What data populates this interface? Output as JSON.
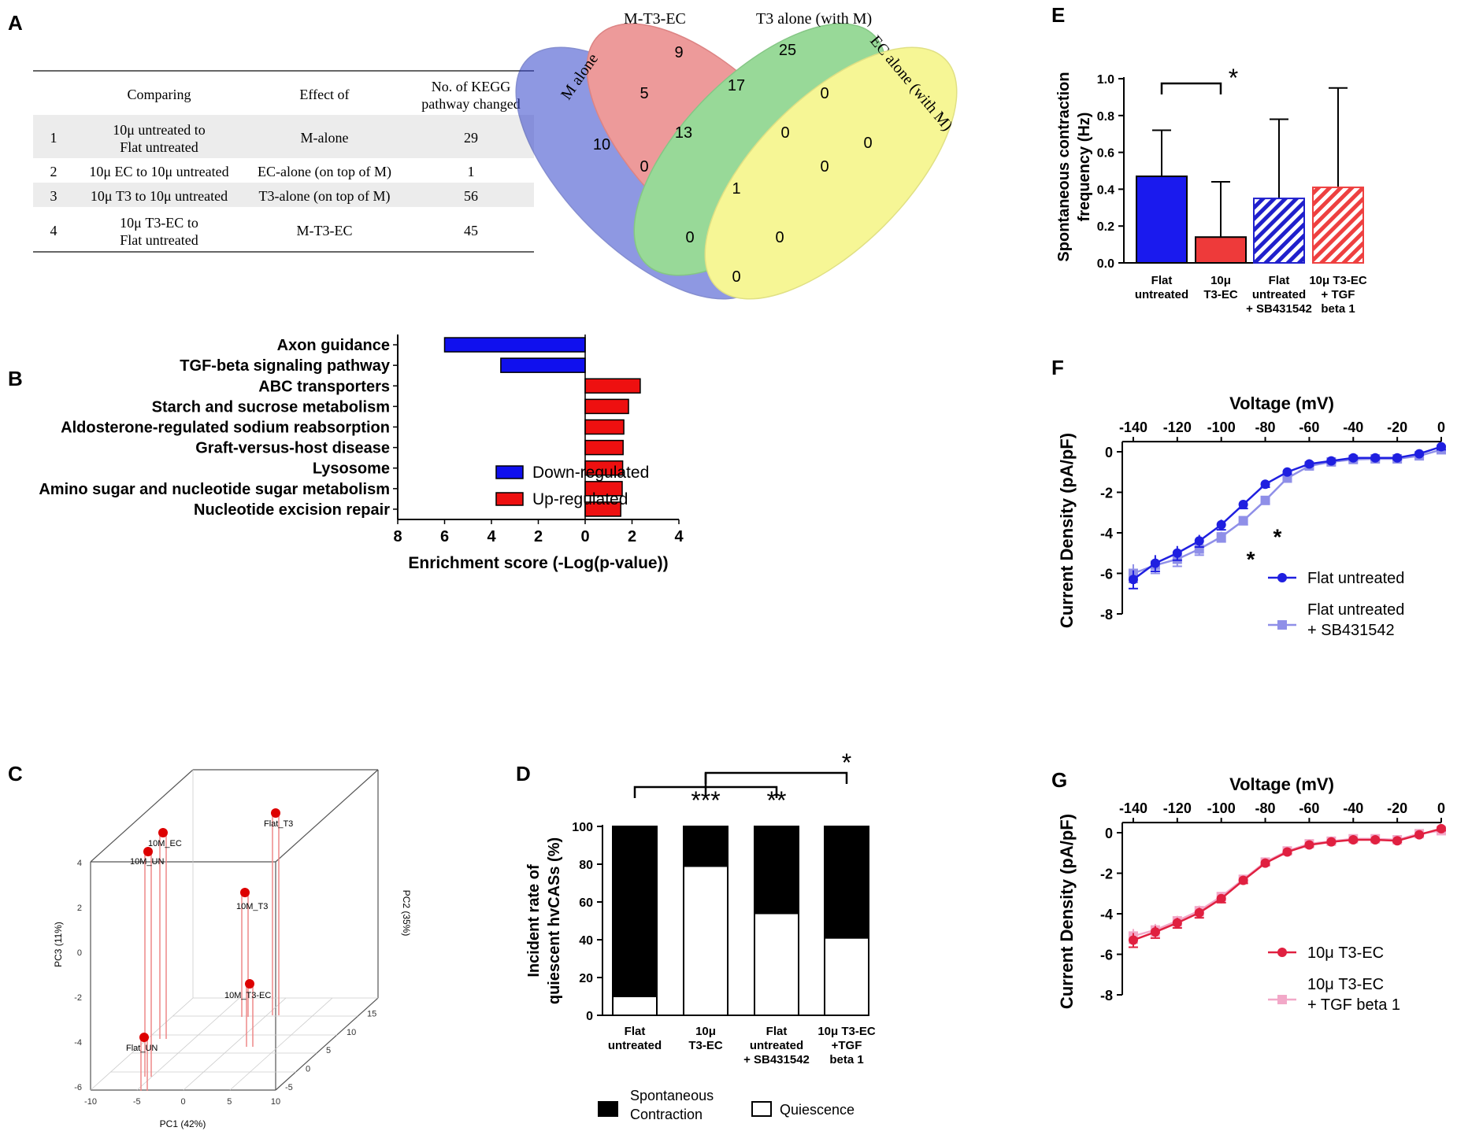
{
  "panel_labels": {
    "a": "A",
    "b": "B",
    "c": "C",
    "d": "D",
    "e": "E",
    "f": "F",
    "g": "G"
  },
  "table": {
    "headers": [
      "Comparing",
      "Effect of",
      "No. of KEGG pathway changed"
    ],
    "rows": [
      {
        "n": "1",
        "comparing": "10μ untreated to Flat untreated",
        "effect": "M-alone",
        "count": "29"
      },
      {
        "n": "2",
        "comparing": "10μ EC to 10μ untreated",
        "effect": "EC-alone (on top of M)",
        "count": "1"
      },
      {
        "n": "3",
        "comparing": "10μ T3 to 10μ untreated",
        "effect": "T3-alone (on top of M)",
        "count": "56"
      },
      {
        "n": "4",
        "comparing": "10μ T3-EC to Flat untreated",
        "effect": "M-T3-EC",
        "count": "45"
      }
    ]
  },
  "chart_data": [
    {
      "panel": "A",
      "type": "venn",
      "sets": [
        "M alone",
        "M-T3-EC",
        "T3 alone (with M)",
        "EC alone (with M)"
      ],
      "colors": [
        "#3344cc",
        "#e04848",
        "#44bb44",
        "#f0f040"
      ],
      "region_counts": [
        "10",
        "9",
        "25",
        "0",
        "5",
        "17",
        "0",
        "13",
        "0",
        "0",
        "1",
        "0",
        "0",
        "0",
        "0"
      ]
    },
    {
      "panel": "B",
      "type": "bar",
      "orientation": "horizontal",
      "categories": [
        "Axon guidance",
        "TGF-beta signaling pathway",
        "ABC transporters",
        "Starch and sucrose metabolism",
        "Aldosterone-regulated sodium reabsorption",
        "Graft-versus-host disease",
        "Lysosome",
        "Amino sugar and nucleotide sugar metabolism",
        "Nucleotide excision repair"
      ],
      "values": [
        -6.0,
        -3.6,
        2.35,
        1.85,
        1.65,
        1.62,
        1.6,
        1.58,
        1.52
      ],
      "legend": [
        "Down-regulated",
        "Up-regulated"
      ],
      "colors": [
        "#1010ee",
        "#ee1010"
      ],
      "xlabel": "Enrichment score (-Log(p-value))",
      "ticks": [
        "8",
        "6",
        "4",
        "2",
        "0",
        "2",
        "4"
      ],
      "xlim": [
        -8,
        4
      ]
    },
    {
      "panel": "C",
      "type": "scatter3d",
      "xlabel": "PC1 (42%)",
      "ylabel": "PC2 (35%)",
      "zlabel": "PC3 (11%)",
      "x_ticks": [
        "-10",
        "-5",
        "0",
        "5",
        "10"
      ],
      "y_ticks": [
        "-5",
        "0",
        "5",
        "10",
        "15"
      ],
      "z_ticks": [
        "4",
        "2",
        "0",
        "-2",
        "-4",
        "-6"
      ],
      "points": [
        {
          "label": "10M_EC"
        },
        {
          "label": "10M_UN"
        },
        {
          "label": "Flat_T3"
        },
        {
          "label": "10M_T3"
        },
        {
          "label": "10M_T3-EC"
        },
        {
          "label": "Flat_UN"
        }
      ],
      "color": "#dd0000"
    },
    {
      "panel": "D",
      "type": "bar",
      "stacked": true,
      "categories": [
        "Flat untreated",
        "10μ T3-EC",
        "Flat untreated + SB431542",
        "10μ T3-EC +TGF beta 1"
      ],
      "series": [
        {
          "name": "Quiescence",
          "values": [
            10,
            79,
            54,
            41
          ]
        },
        {
          "name": "Spontaneous Contraction",
          "values": [
            90,
            21,
            46,
            59
          ]
        }
      ],
      "ylabel": "Incident rate of quiescent hvCASs (%)",
      "ylim": [
        0,
        100
      ],
      "yticks": [
        "0",
        "20",
        "40",
        "60",
        "80",
        "100"
      ],
      "significance": [
        "***",
        "**",
        "*"
      ],
      "legend": [
        "Spontaneous Contraction",
        "Quiescence"
      ]
    },
    {
      "panel": "E",
      "type": "bar",
      "categories": [
        "Flat untreated",
        "10μ T3-EC",
        "Flat untreated + SB431542",
        "10μ T3-EC + TGF beta 1"
      ],
      "values": [
        0.47,
        0.14,
        0.35,
        0.41
      ],
      "errors": [
        0.25,
        0.3,
        0.43,
        0.54
      ],
      "colors": [
        "#1a1aee",
        "#ee3a3a",
        "#2020cc",
        "#ee4040"
      ],
      "ylabel": "Spontaneous contraction frequency (Hz)",
      "ylim": [
        0,
        1.0
      ],
      "yticks": [
        "0.0",
        "0.2",
        "0.4",
        "0.6",
        "0.8",
        "1.0"
      ],
      "significance": [
        "*"
      ]
    },
    {
      "panel": "F",
      "type": "line",
      "title": "Voltage (mV)",
      "ylabel": "Current Density (pA/pF)",
      "x": [
        -140,
        -130,
        -120,
        -110,
        -100,
        -90,
        -80,
        -70,
        -60,
        -50,
        -40,
        -30,
        -20,
        -10,
        0
      ],
      "xticks": [
        "-140",
        "-120",
        "-100",
        "-80",
        "-60",
        "-40",
        "-20",
        "0"
      ],
      "yticks": [
        "0",
        "-2",
        "-4",
        "-6",
        "-8"
      ],
      "xlim": [
        -145,
        0
      ],
      "ylim": [
        -8,
        0.5
      ],
      "series": [
        {
          "name": "Flat untreated",
          "color": "#1f1fe0",
          "values": [
            -6.3,
            -5.5,
            -5.0,
            -4.4,
            -3.6,
            -2.6,
            -1.6,
            -1.0,
            -0.6,
            -0.45,
            -0.3,
            -0.3,
            -0.3,
            -0.1,
            0.25
          ]
        },
        {
          "name": "Flat untreated + SB431542",
          "color": "#8f8fe8",
          "values": [
            -6.0,
            -5.6,
            -5.3,
            -4.8,
            -4.2,
            -3.4,
            -2.4,
            -1.3,
            -0.7,
            -0.5,
            -0.38,
            -0.35,
            -0.35,
            -0.2,
            0.1
          ]
        }
      ],
      "errors": [
        0.45,
        0.4,
        0.35,
        0.3,
        0.25,
        0.2,
        0.15,
        0.1,
        0.1,
        0.08,
        0.08,
        0.08,
        0.08,
        0.06,
        0.15
      ],
      "significance": [
        "*",
        "*"
      ]
    },
    {
      "panel": "G",
      "type": "line",
      "title": "Voltage (mV)",
      "ylabel": "Current Density (pA/pF)",
      "x": [
        -140,
        -130,
        -120,
        -110,
        -100,
        -90,
        -80,
        -70,
        -60,
        -50,
        -40,
        -30,
        -20,
        -10,
        0
      ],
      "xticks": [
        "-140",
        "-120",
        "-100",
        "-80",
        "-60",
        "-40",
        "-20",
        "0"
      ],
      "yticks": [
        "0",
        "-2",
        "-4",
        "-6",
        "-8"
      ],
      "xlim": [
        -145,
        0
      ],
      "ylim": [
        -8,
        0.5
      ],
      "series": [
        {
          "name": "10μ T3-EC",
          "color": "#e02040",
          "values": [
            -5.3,
            -4.9,
            -4.45,
            -3.95,
            -3.25,
            -2.35,
            -1.5,
            -0.95,
            -0.6,
            -0.45,
            -0.35,
            -0.35,
            -0.4,
            -0.1,
            0.2
          ]
        },
        {
          "name": "10μ T3-EC + TGF beta 1",
          "color": "#f2a8c8",
          "values": [
            -5.1,
            -4.8,
            -4.35,
            -3.85,
            -3.15,
            -2.3,
            -1.45,
            -0.9,
            -0.55,
            -0.42,
            -0.3,
            -0.3,
            -0.35,
            -0.05,
            0.1
          ]
        }
      ],
      "errors": [
        0.35,
        0.3,
        0.25,
        0.25,
        0.2,
        0.15,
        0.1,
        0.08,
        0.08,
        0.06,
        0.06,
        0.06,
        0.06,
        0.05,
        0.1
      ]
    }
  ]
}
